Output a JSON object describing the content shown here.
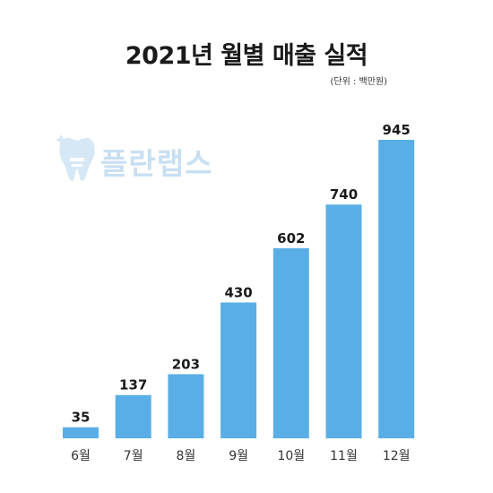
{
  "chart_data": {
    "type": "bar",
    "title": "2021년 월별 매출 실적",
    "unit_note": "(단위 : 백만원)",
    "categories": [
      "6월",
      "7월",
      "8월",
      "9월",
      "10월",
      "11월",
      "12월"
    ],
    "values": [
      35,
      137,
      203,
      430,
      602,
      740,
      945
    ],
    "xlabel": "",
    "ylabel": "",
    "ylim": [
      0,
      945
    ],
    "bar_color": "#5aaee6",
    "grid": false,
    "legend": "none"
  },
  "watermark": {
    "text": "플란랩스",
    "icon": "tooth-icon",
    "color": "#c8dff2"
  }
}
